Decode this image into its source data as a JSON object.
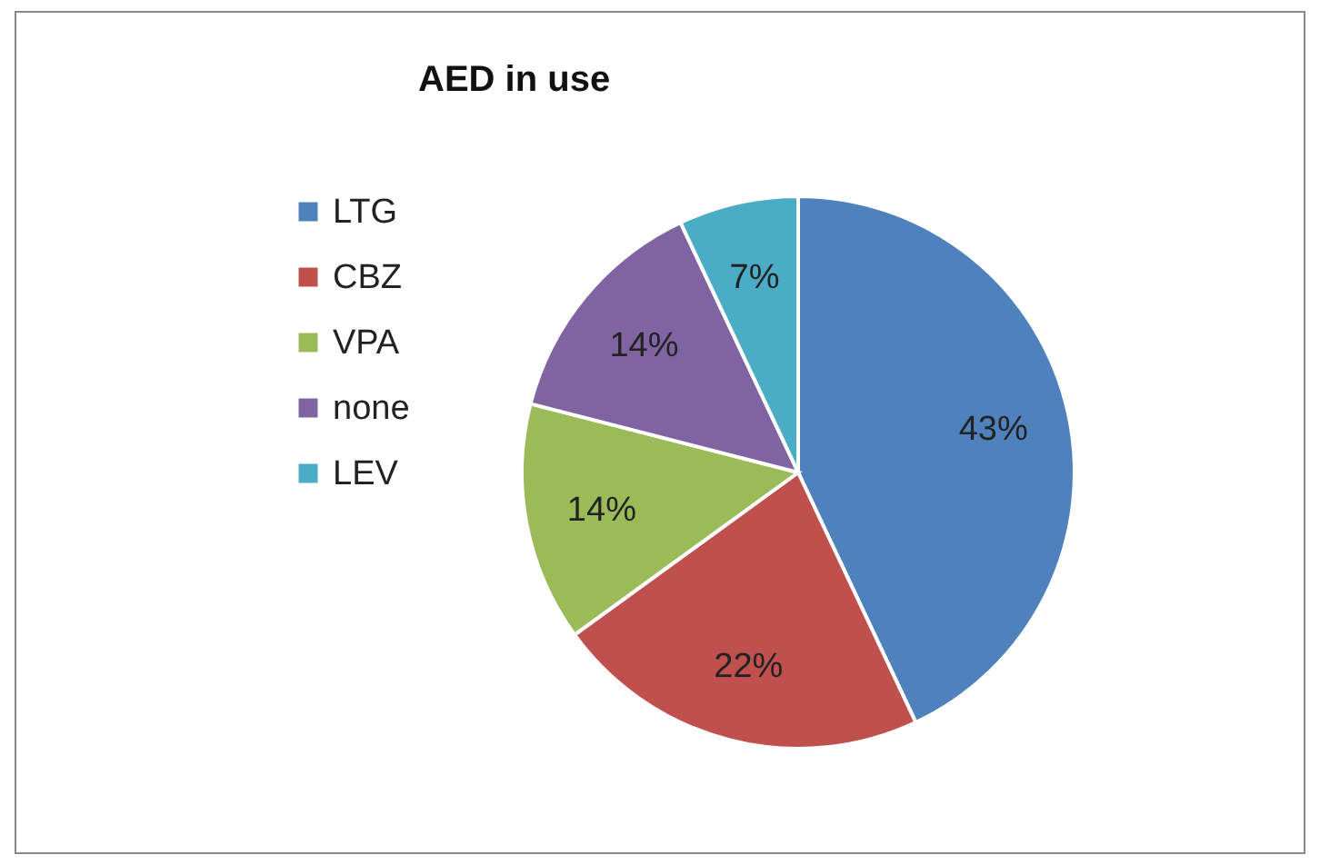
{
  "chart_data": {
    "type": "pie",
    "title": "AED in use",
    "categories": [
      "LTG",
      "CBZ",
      "VPA",
      "none",
      "LEV"
    ],
    "values": [
      43,
      22,
      14,
      14,
      7
    ],
    "colors": [
      "#4f81bd",
      "#c0504d",
      "#9bbb59",
      "#8064a2",
      "#4bacc6"
    ],
    "value_labels": [
      "43%",
      "22%",
      "14%",
      "14%",
      "7%"
    ],
    "legend": "left"
  }
}
